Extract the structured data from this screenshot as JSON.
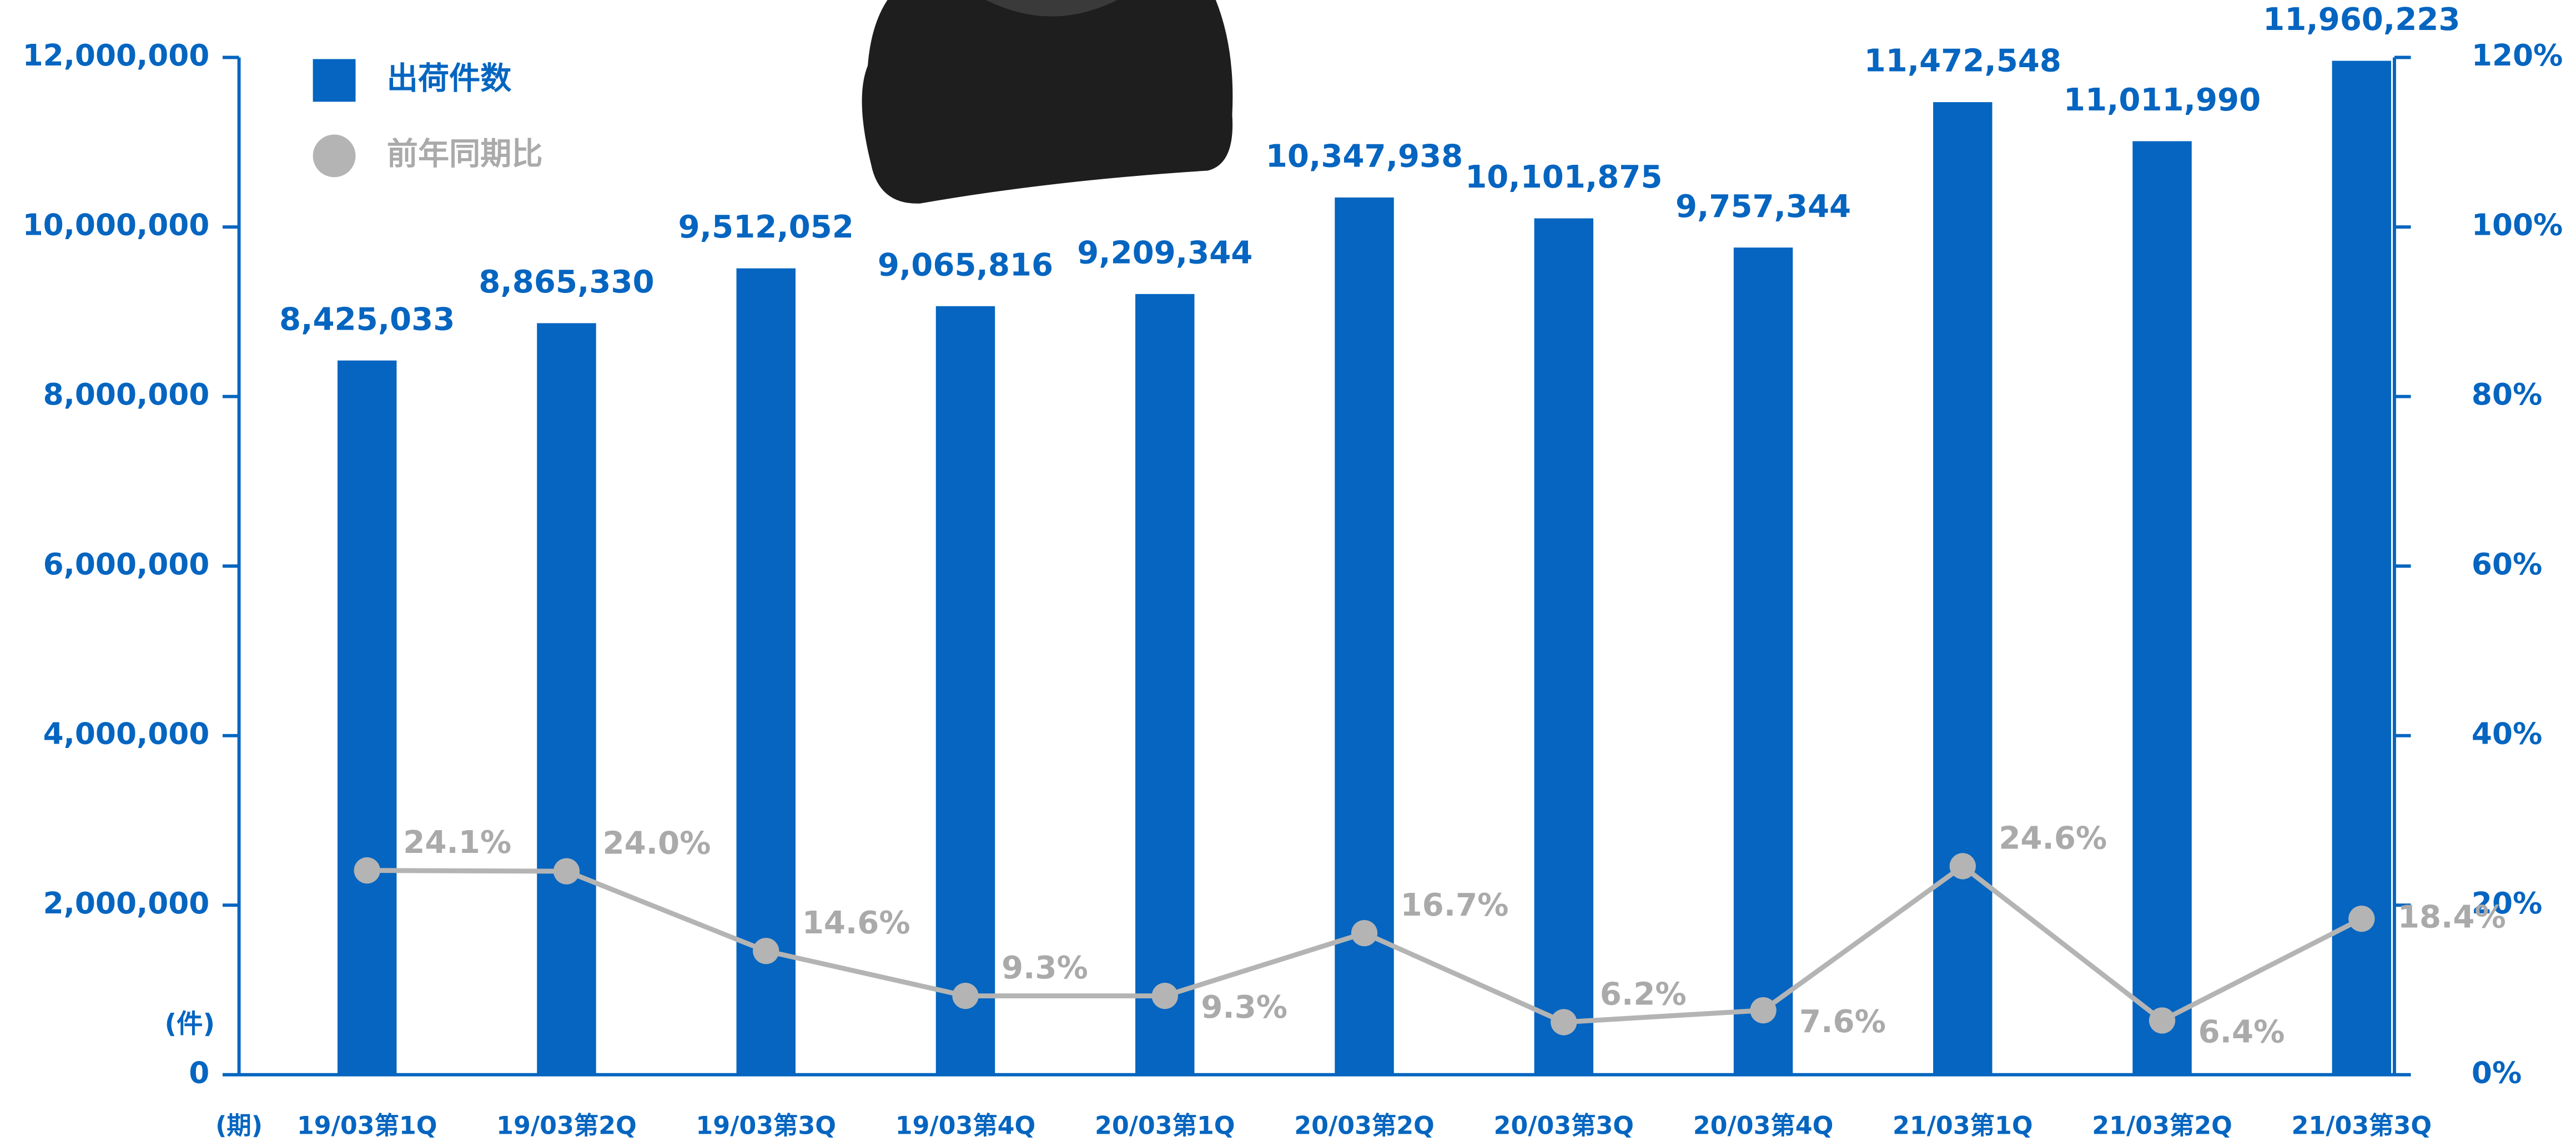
{
  "chart_data": {
    "type": "bar-line",
    "categories": [
      "19/03第1Q",
      "19/03第2Q",
      "19/03第3Q",
      "19/03第4Q",
      "20/03第1Q",
      "20/03第2Q",
      "20/03第3Q",
      "20/03第4Q",
      "21/03第1Q",
      "21/03第2Q",
      "21/03第3Q"
    ],
    "y_axis_label": "(件)",
    "x_axis_label": "(期)",
    "series": [
      {
        "name": "出荷件数",
        "color": "#0565c0",
        "kind": "bar",
        "values": [
          8425033,
          8865330,
          9512052,
          9065816,
          9209344,
          10347938,
          10101875,
          9757344,
          11472548,
          11011990,
          11960223
        ],
        "value_labels": [
          "8,425,033",
          "8,865,330",
          "9,512,052",
          "9,065,816",
          "9,209,344",
          "10,347,938",
          "10,101,875",
          "9,757,344",
          "11,472,548",
          "11,011,990",
          "11,960,223"
        ]
      },
      {
        "name": "前年同期比",
        "color": "#b4b4b4",
        "kind": "line",
        "axis": "y2",
        "values": [
          24.1,
          24.0,
          14.6,
          9.3,
          9.3,
          16.7,
          6.2,
          7.6,
          24.6,
          6.4,
          18.4
        ],
        "value_labels": [
          "24.1%",
          "24.0%",
          "14.6%",
          "9.3%",
          "9.3%",
          "16.7%",
          "6.2%",
          "7.6%",
          "24.6%",
          "6.4%",
          "18.4%"
        ]
      }
    ],
    "ylim": [
      0,
      12000000
    ],
    "yticks": [
      0,
      {
        "value": 2000000,
        "label": "2,000,000"
      },
      {
        "value": 4000000,
        "label": "4,000,000"
      },
      {
        "value": 6000000,
        "label": "6,000,000"
      },
      {
        "value": 8000000,
        "label": "8,000,000"
      },
      {
        "value": 10000000,
        "label": "10,000,000"
      },
      {
        "value": 12000000,
        "label": "12,000,000"
      }
    ],
    "y2lim": [
      0,
      120
    ],
    "y2ticks": [
      {
        "value": 0,
        "label": "0%"
      },
      {
        "value": 20,
        "label": "20%"
      },
      {
        "value": 40,
        "label": "40%"
      },
      {
        "value": 60,
        "label": "60%"
      },
      {
        "value": 80,
        "label": "80%"
      },
      {
        "value": 100,
        "label": "100%"
      },
      {
        "value": 120,
        "label": "120%"
      }
    ],
    "legend": "upper left",
    "grid": false
  }
}
